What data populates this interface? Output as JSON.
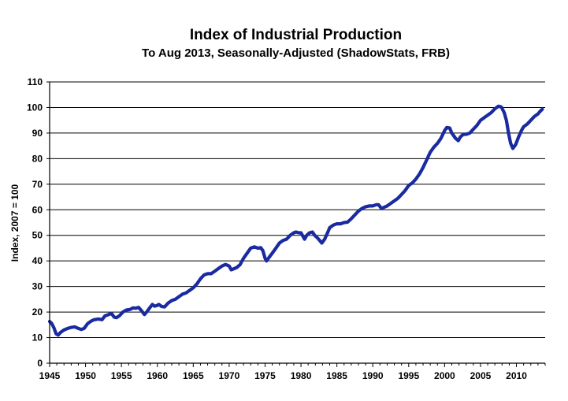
{
  "chart_data": {
    "type": "line",
    "title": "Index of Industrial Production",
    "subtitle": "To Aug 2013, Seasonally-Adjusted (ShadowStats, FRB)",
    "xlabel": "",
    "ylabel": "Index, 2007 = 100",
    "xlim": [
      1945,
      2014
    ],
    "ylim": [
      0,
      110
    ],
    "x_ticks": [
      "1945",
      "1950",
      "1955",
      "1960",
      "1965",
      "1970",
      "1975",
      "1980",
      "1985",
      "1990",
      "1995",
      "2000",
      "2005",
      "2010"
    ],
    "y_ticks": [
      "0",
      "10",
      "20",
      "30",
      "40",
      "50",
      "60",
      "70",
      "80",
      "90",
      "100",
      "110"
    ],
    "grid": true,
    "legend": "none",
    "colors": {
      "line": "#1a2aa0",
      "grid": "#000000",
      "axis": "#000000"
    },
    "series": [
      {
        "x": [
          1945.0,
          1945.3,
          1945.6,
          1945.9,
          1946.2,
          1946.5,
          1947.0,
          1947.5,
          1948.0,
          1948.5,
          1949.0,
          1949.4,
          1949.8,
          1950.3,
          1950.8,
          1951.2,
          1951.8,
          1952.3,
          1952.7,
          1953.2,
          1953.6,
          1954.0,
          1954.3,
          1954.7,
          1955.2,
          1955.7,
          1956.2,
          1956.6,
          1957.0,
          1957.4,
          1957.8,
          1958.2,
          1958.5,
          1958.9,
          1959.3,
          1959.6,
          1959.9,
          1960.2,
          1960.6,
          1961.0,
          1961.5,
          1962.0,
          1962.5,
          1963.0,
          1963.5,
          1964.0,
          1964.5,
          1965.0,
          1965.5,
          1966.0,
          1966.5,
          1967.0,
          1967.5,
          1968.0,
          1968.5,
          1969.0,
          1969.5,
          1970.0,
          1970.3,
          1970.7,
          1971.0,
          1971.5,
          1972.0,
          1972.5,
          1973.0,
          1973.5,
          1974.0,
          1974.4,
          1974.7,
          1975.0,
          1975.2,
          1975.6,
          1976.0,
          1976.5,
          1977.0,
          1977.5,
          1978.0,
          1978.5,
          1979.0,
          1979.3,
          1979.7,
          1980.0,
          1980.3,
          1980.5,
          1980.8,
          1981.2,
          1981.6,
          1981.9,
          1982.3,
          1982.6,
          1982.9,
          1983.3,
          1983.7,
          1984.0,
          1984.5,
          1985.0,
          1985.5,
          1986.0,
          1986.5,
          1987.0,
          1987.5,
          1988.0,
          1988.5,
          1989.0,
          1989.5,
          1990.0,
          1990.5,
          1990.8,
          1991.2,
          1991.6,
          1992.0,
          1992.5,
          1993.0,
          1993.5,
          1994.0,
          1994.5,
          1995.0,
          1995.5,
          1996.0,
          1996.5,
          1997.0,
          1997.5,
          1998.0,
          1998.5,
          1999.0,
          1999.5,
          2000.0,
          2000.3,
          2000.7,
          2001.0,
          2001.5,
          2001.9,
          2002.2,
          2002.6,
          2003.0,
          2003.5,
          2004.0,
          2004.5,
          2005.0,
          2005.5,
          2006.0,
          2006.5,
          2007.0,
          2007.5,
          2007.9,
          2008.3,
          2008.6,
          2008.9,
          2009.2,
          2009.5,
          2009.9,
          2010.3,
          2010.7,
          2011.0,
          2011.5,
          2012.0,
          2012.5,
          2013.0,
          2013.3,
          2013.6
        ],
        "y": [
          16.3,
          15.5,
          13.8,
          11.5,
          11.0,
          12.0,
          13.0,
          13.6,
          14.0,
          14.2,
          13.6,
          13.2,
          13.6,
          15.5,
          16.5,
          17.0,
          17.3,
          17.0,
          18.5,
          19.0,
          19.5,
          18.0,
          17.8,
          18.5,
          20.0,
          20.8,
          21.0,
          21.6,
          21.5,
          21.8,
          20.5,
          19.0,
          20.0,
          21.5,
          23.0,
          22.3,
          22.5,
          23.0,
          22.2,
          22.0,
          23.5,
          24.5,
          25.0,
          26.0,
          27.0,
          27.5,
          28.5,
          29.5,
          31.0,
          33.0,
          34.5,
          35.0,
          35.0,
          36.0,
          37.0,
          38.0,
          38.6,
          38.0,
          36.5,
          37.0,
          37.3,
          38.5,
          41.0,
          43.0,
          45.0,
          45.5,
          45.0,
          45.2,
          44.0,
          41.0,
          40.0,
          41.5,
          43.0,
          45.0,
          47.0,
          48.0,
          48.5,
          50.0,
          51.0,
          51.3,
          51.0,
          51.0,
          49.5,
          48.5,
          50.0,
          51.0,
          51.3,
          50.0,
          49.0,
          48.0,
          47.0,
          48.5,
          51.0,
          53.0,
          54.0,
          54.5,
          54.5,
          55.0,
          55.2,
          56.5,
          58.0,
          59.5,
          60.5,
          61.2,
          61.5,
          61.5,
          62.0,
          62.0,
          60.5,
          61.0,
          61.5,
          62.5,
          63.5,
          64.5,
          66.0,
          67.5,
          69.5,
          70.5,
          72.0,
          74.0,
          76.5,
          79.5,
          82.5,
          84.5,
          86.0,
          88.0,
          91.0,
          92.2,
          92.0,
          90.0,
          88.0,
          87.0,
          88.5,
          89.5,
          89.5,
          90.0,
          91.5,
          93.0,
          95.0,
          96.0,
          97.0,
          98.0,
          99.5,
          100.5,
          100.2,
          98.0,
          95.0,
          90.0,
          86.0,
          84.0,
          85.5,
          88.5,
          91.0,
          92.5,
          93.5,
          95.0,
          96.5,
          97.5,
          98.5,
          99.3
        ]
      }
    ]
  }
}
